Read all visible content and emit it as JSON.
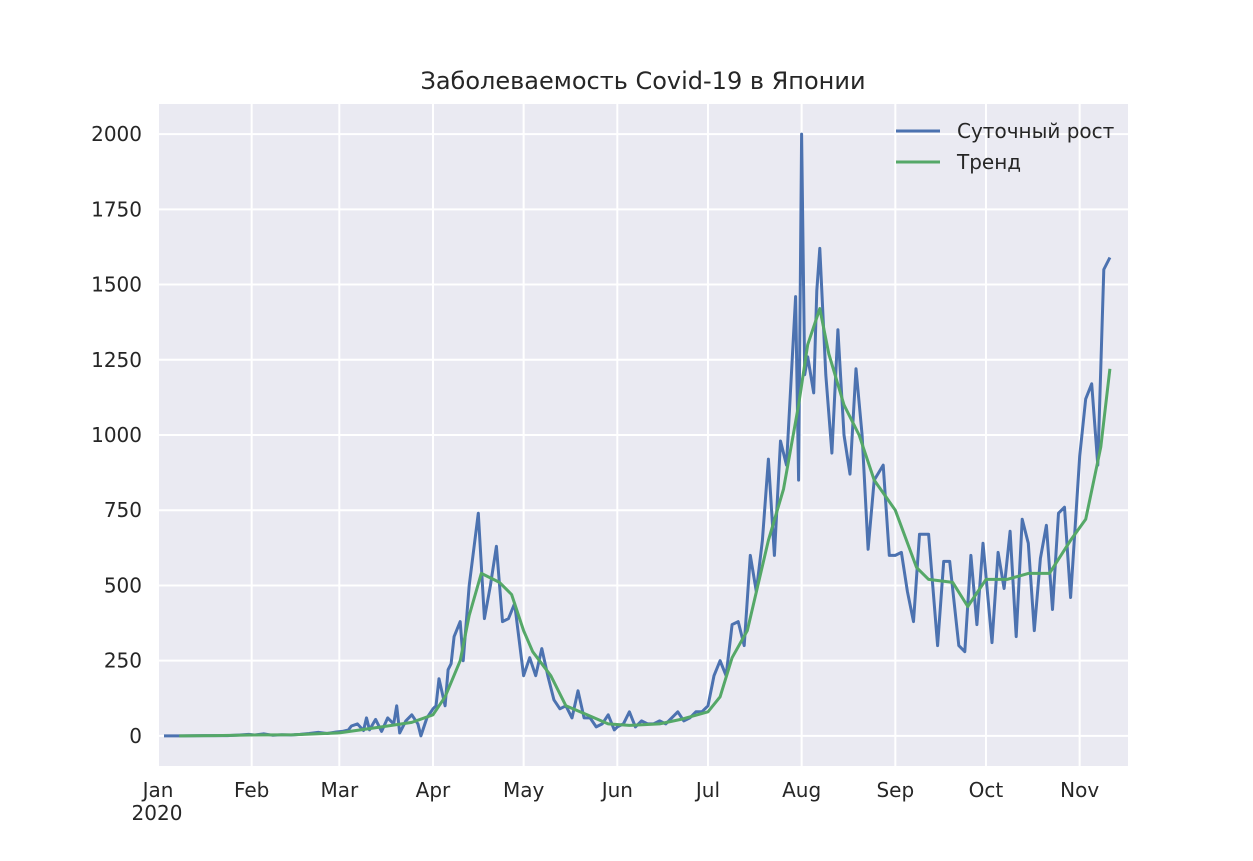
{
  "chart_data": {
    "type": "line",
    "title": "Заболеваемость Covid-19 в Японии",
    "xlabel": "",
    "ylabel": "",
    "x_ticks": [
      "2020-01-01",
      "2020-02-01",
      "2020-03-01",
      "2020-04-01",
      "2020-05-01",
      "2020-06-01",
      "2020-07-01",
      "2020-08-01",
      "2020-09-01",
      "2020-10-01",
      "2020-11-01"
    ],
    "x_tick_labels": [
      "Jan",
      "Feb",
      "Mar",
      "Apr",
      "May",
      "Jun",
      "Jul",
      "Aug",
      "Sep",
      "Oct",
      "Nov"
    ],
    "x_year_label": "2020",
    "xlim": [
      "2020-01-01",
      "2020-11-17"
    ],
    "y_ticks": [
      0,
      250,
      500,
      750,
      1000,
      1250,
      1500,
      1750,
      2000
    ],
    "ylim": [
      -100,
      2100
    ],
    "grid": true,
    "legend_position": "top-right",
    "series": [
      {
        "name": "Суточный рост",
        "color": "#4c72b0",
        "points": [
          [
            "2020-01-03",
            0
          ],
          [
            "2020-01-09",
            0
          ],
          [
            "2020-01-16",
            1
          ],
          [
            "2020-01-24",
            1
          ],
          [
            "2020-01-28",
            3
          ],
          [
            "2020-01-31",
            5
          ],
          [
            "2020-02-02",
            3
          ],
          [
            "2020-02-05",
            7
          ],
          [
            "2020-02-08",
            2
          ],
          [
            "2020-02-11",
            4
          ],
          [
            "2020-02-14",
            3
          ],
          [
            "2020-02-17",
            5
          ],
          [
            "2020-02-20",
            8
          ],
          [
            "2020-02-23",
            12
          ],
          [
            "2020-02-26",
            8
          ],
          [
            "2020-02-29",
            13
          ],
          [
            "2020-03-02",
            15
          ],
          [
            "2020-03-04",
            20
          ],
          [
            "2020-03-05",
            33
          ],
          [
            "2020-03-07",
            40
          ],
          [
            "2020-03-09",
            18
          ],
          [
            "2020-03-10",
            60
          ],
          [
            "2020-03-11",
            20
          ],
          [
            "2020-03-13",
            55
          ],
          [
            "2020-03-15",
            15
          ],
          [
            "2020-03-17",
            60
          ],
          [
            "2020-03-19",
            40
          ],
          [
            "2020-03-20",
            100
          ],
          [
            "2020-03-21",
            10
          ],
          [
            "2020-03-23",
            50
          ],
          [
            "2020-03-25",
            70
          ],
          [
            "2020-03-27",
            40
          ],
          [
            "2020-03-28",
            0
          ],
          [
            "2020-03-30",
            60
          ],
          [
            "2020-04-01",
            90
          ],
          [
            "2020-04-02",
            100
          ],
          [
            "2020-04-03",
            190
          ],
          [
            "2020-04-05",
            100
          ],
          [
            "2020-04-06",
            220
          ],
          [
            "2020-04-07",
            240
          ],
          [
            "2020-04-08",
            330
          ],
          [
            "2020-04-10",
            380
          ],
          [
            "2020-04-11",
            250
          ],
          [
            "2020-04-13",
            500
          ],
          [
            "2020-04-16",
            740
          ],
          [
            "2020-04-18",
            390
          ],
          [
            "2020-04-20",
            500
          ],
          [
            "2020-04-22",
            630
          ],
          [
            "2020-04-24",
            380
          ],
          [
            "2020-04-26",
            390
          ],
          [
            "2020-04-28",
            440
          ],
          [
            "2020-04-30",
            280
          ],
          [
            "2020-05-01",
            200
          ],
          [
            "2020-05-03",
            260
          ],
          [
            "2020-05-05",
            200
          ],
          [
            "2020-05-07",
            290
          ],
          [
            "2020-05-09",
            200
          ],
          [
            "2020-05-11",
            120
          ],
          [
            "2020-05-13",
            90
          ],
          [
            "2020-05-15",
            100
          ],
          [
            "2020-05-17",
            60
          ],
          [
            "2020-05-19",
            150
          ],
          [
            "2020-05-21",
            60
          ],
          [
            "2020-05-23",
            60
          ],
          [
            "2020-05-25",
            30
          ],
          [
            "2020-05-27",
            40
          ],
          [
            "2020-05-29",
            70
          ],
          [
            "2020-05-31",
            20
          ],
          [
            "2020-06-01",
            30
          ],
          [
            "2020-06-03",
            40
          ],
          [
            "2020-06-05",
            80
          ],
          [
            "2020-06-07",
            30
          ],
          [
            "2020-06-09",
            50
          ],
          [
            "2020-06-11",
            40
          ],
          [
            "2020-06-13",
            40
          ],
          [
            "2020-06-15",
            50
          ],
          [
            "2020-06-17",
            40
          ],
          [
            "2020-06-19",
            60
          ],
          [
            "2020-06-21",
            80
          ],
          [
            "2020-06-23",
            50
          ],
          [
            "2020-06-25",
            60
          ],
          [
            "2020-06-27",
            80
          ],
          [
            "2020-06-29",
            80
          ],
          [
            "2020-07-01",
            100
          ],
          [
            "2020-07-03",
            200
          ],
          [
            "2020-07-05",
            250
          ],
          [
            "2020-07-07",
            200
          ],
          [
            "2020-07-09",
            370
          ],
          [
            "2020-07-11",
            380
          ],
          [
            "2020-07-13",
            300
          ],
          [
            "2020-07-15",
            600
          ],
          [
            "2020-07-17",
            480
          ],
          [
            "2020-07-19",
            650
          ],
          [
            "2020-07-21",
            920
          ],
          [
            "2020-07-23",
            600
          ],
          [
            "2020-07-25",
            980
          ],
          [
            "2020-07-27",
            900
          ],
          [
            "2020-07-30",
            1460
          ],
          [
            "2020-07-31",
            850
          ],
          [
            "2020-08-01",
            2000
          ],
          [
            "2020-08-02",
            1200
          ],
          [
            "2020-08-03",
            1260
          ],
          [
            "2020-08-05",
            1140
          ],
          [
            "2020-08-06",
            1480
          ],
          [
            "2020-08-07",
            1620
          ],
          [
            "2020-08-09",
            1200
          ],
          [
            "2020-08-11",
            940
          ],
          [
            "2020-08-13",
            1350
          ],
          [
            "2020-08-15",
            1000
          ],
          [
            "2020-08-17",
            870
          ],
          [
            "2020-08-19",
            1220
          ],
          [
            "2020-08-21",
            1000
          ],
          [
            "2020-08-23",
            620
          ],
          [
            "2020-08-25",
            850
          ],
          [
            "2020-08-28",
            900
          ],
          [
            "2020-08-30",
            600
          ],
          [
            "2020-09-01",
            600
          ],
          [
            "2020-09-03",
            610
          ],
          [
            "2020-09-05",
            480
          ],
          [
            "2020-09-07",
            380
          ],
          [
            "2020-09-09",
            670
          ],
          [
            "2020-09-12",
            670
          ],
          [
            "2020-09-15",
            300
          ],
          [
            "2020-09-17",
            580
          ],
          [
            "2020-09-19",
            580
          ],
          [
            "2020-09-22",
            300
          ],
          [
            "2020-09-24",
            280
          ],
          [
            "2020-09-26",
            600
          ],
          [
            "2020-09-28",
            370
          ],
          [
            "2020-09-30",
            640
          ],
          [
            "2020-10-03",
            310
          ],
          [
            "2020-10-05",
            610
          ],
          [
            "2020-10-07",
            490
          ],
          [
            "2020-10-09",
            680
          ],
          [
            "2020-10-11",
            330
          ],
          [
            "2020-10-13",
            720
          ],
          [
            "2020-10-15",
            640
          ],
          [
            "2020-10-17",
            350
          ],
          [
            "2020-10-19",
            590
          ],
          [
            "2020-10-21",
            700
          ],
          [
            "2020-10-23",
            420
          ],
          [
            "2020-10-25",
            740
          ],
          [
            "2020-10-27",
            760
          ],
          [
            "2020-10-29",
            460
          ],
          [
            "2020-11-01",
            930
          ],
          [
            "2020-11-03",
            1120
          ],
          [
            "2020-11-05",
            1170
          ],
          [
            "2020-11-07",
            900
          ],
          [
            "2020-11-09",
            1550
          ],
          [
            "2020-11-11",
            1590
          ]
        ]
      },
      {
        "name": "Тренд",
        "color": "#55a868",
        "points": [
          [
            "2020-01-08",
            0
          ],
          [
            "2020-01-20",
            1
          ],
          [
            "2020-02-01",
            3
          ],
          [
            "2020-02-15",
            4
          ],
          [
            "2020-03-01",
            10
          ],
          [
            "2020-03-15",
            30
          ],
          [
            "2020-03-25",
            45
          ],
          [
            "2020-04-01",
            70
          ],
          [
            "2020-04-05",
            130
          ],
          [
            "2020-04-10",
            250
          ],
          [
            "2020-04-13",
            400
          ],
          [
            "2020-04-17",
            540
          ],
          [
            "2020-04-23",
            510
          ],
          [
            "2020-04-27",
            470
          ],
          [
            "2020-05-01",
            350
          ],
          [
            "2020-05-04",
            280
          ],
          [
            "2020-05-10",
            200
          ],
          [
            "2020-05-15",
            100
          ],
          [
            "2020-05-22",
            70
          ],
          [
            "2020-05-29",
            40
          ],
          [
            "2020-06-05",
            35
          ],
          [
            "2020-06-15",
            40
          ],
          [
            "2020-06-22",
            55
          ],
          [
            "2020-07-01",
            80
          ],
          [
            "2020-07-05",
            130
          ],
          [
            "2020-07-09",
            260
          ],
          [
            "2020-07-14",
            350
          ],
          [
            "2020-07-21",
            650
          ],
          [
            "2020-07-26",
            820
          ],
          [
            "2020-07-31",
            1100
          ],
          [
            "2020-08-03",
            1300
          ],
          [
            "2020-08-07",
            1420
          ],
          [
            "2020-08-10",
            1270
          ],
          [
            "2020-08-15",
            1100
          ],
          [
            "2020-08-20",
            1000
          ],
          [
            "2020-08-25",
            850
          ],
          [
            "2020-09-01",
            750
          ],
          [
            "2020-09-08",
            560
          ],
          [
            "2020-09-12",
            520
          ],
          [
            "2020-09-20",
            510
          ],
          [
            "2020-09-25",
            430
          ],
          [
            "2020-10-01",
            520
          ],
          [
            "2020-10-08",
            520
          ],
          [
            "2020-10-15",
            540
          ],
          [
            "2020-10-22",
            540
          ],
          [
            "2020-10-29",
            650
          ],
          [
            "2020-11-03",
            720
          ],
          [
            "2020-11-08",
            960
          ],
          [
            "2020-11-11",
            1220
          ]
        ]
      }
    ]
  }
}
